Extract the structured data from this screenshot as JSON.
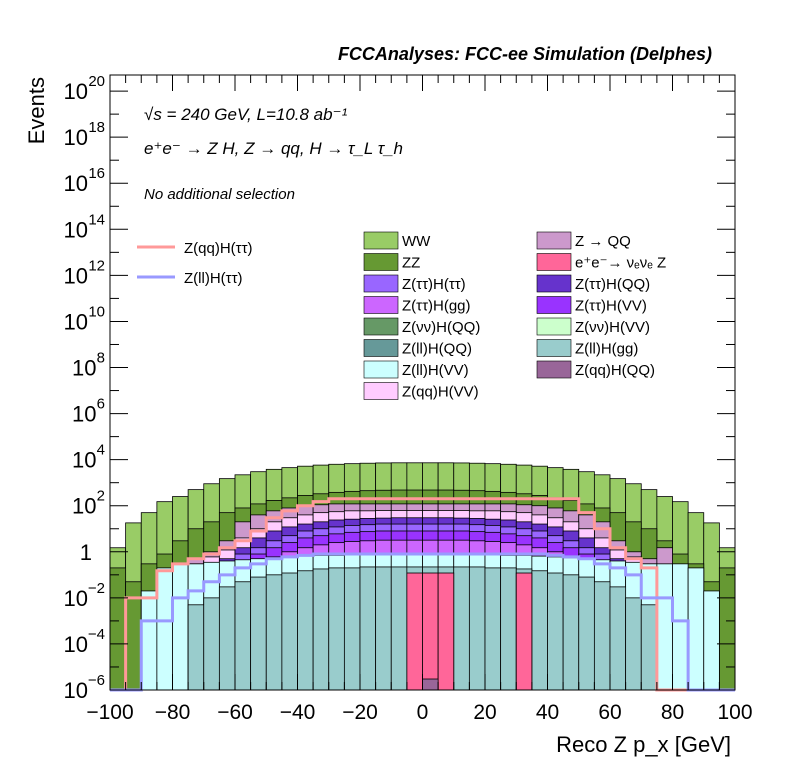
{
  "header": {
    "title": "FCCAnalyses: FCC-ee Simulation (Delphes)"
  },
  "annotations": {
    "energy_lumi": "√s = 240 GeV, L=10.8 ab⁻¹",
    "process": "e⁺e⁻ → Z H, Z → qq, H → τ_L τ_h",
    "selection": "No additional selection"
  },
  "chart_data": {
    "type": "histogram-stack",
    "title": "FCCAnalyses: FCC-ee Simulation (Delphes)",
    "xlabel": "Reco Z p_x [GeV]",
    "ylabel": "Events",
    "xlim": [
      -100,
      100
    ],
    "ylim": [
      1e-06,
      5e+20
    ],
    "yscale": "log",
    "bin_width": 5,
    "x_ticks": [
      "−100",
      "−80",
      "−60",
      "−40",
      "−20",
      "0",
      "20",
      "40",
      "60",
      "80",
      "100"
    ],
    "y_ticks": [
      {
        "value": 1e-06,
        "base": "10",
        "exp": "−6"
      },
      {
        "value": 0.0001,
        "base": "10",
        "exp": "−4"
      },
      {
        "value": 0.01,
        "base": "10",
        "exp": "−2"
      },
      {
        "value": 1,
        "base": "1",
        "exp": ""
      },
      {
        "value": 100.0,
        "base": "10",
        "exp": "2"
      },
      {
        "value": 10000.0,
        "base": "10",
        "exp": "4"
      },
      {
        "value": 1000000.0,
        "base": "10",
        "exp": "6"
      },
      {
        "value": 100000000.0,
        "base": "10",
        "exp": "8"
      },
      {
        "value": 10000000000.0,
        "base": "10",
        "exp": "10"
      },
      {
        "value": 1000000000000.0,
        "base": "10",
        "exp": "12"
      },
      {
        "value": 100000000000000.0,
        "base": "10",
        "exp": "14"
      },
      {
        "value": 1e+16,
        "base": "10",
        "exp": "16"
      },
      {
        "value": 1e+18,
        "base": "10",
        "exp": "18"
      },
      {
        "value": 1e+20,
        "base": "10",
        "exp": "20"
      }
    ],
    "legend": {
      "lines": [
        {
          "name": "Z(qq)H(ττ)",
          "color": "#ff9999"
        },
        {
          "name": "Z(ll)H(ττ)",
          "color": "#9999ff"
        }
      ],
      "fills_left": [
        {
          "name": "WW",
          "color": "#99cc66"
        },
        {
          "name": "ZZ",
          "color": "#669933"
        },
        {
          "name": "Z(ττ)H(ττ)",
          "color": "#9966ff"
        },
        {
          "name": "Z(ττ)H(gg)",
          "color": "#cc66ff"
        },
        {
          "name": "Z(νν)H(QQ)",
          "color": "#669966"
        },
        {
          "name": "Z(ll)H(QQ)",
          "color": "#669999"
        },
        {
          "name": "Z(ll)H(VV)",
          "color": "#ccffff"
        },
        {
          "name": "Z(qq)H(VV)",
          "color": "#ffccff"
        }
      ],
      "fills_right": [
        {
          "name": "Z → QQ",
          "color": "#cc99cc"
        },
        {
          "name": "e⁺e⁻→ νₑνₑ Z",
          "color": "#ff6699"
        },
        {
          "name": "Z(ττ)H(QQ)",
          "color": "#6633cc"
        },
        {
          "name": "Z(ττ)H(VV)",
          "color": "#9933ff"
        },
        {
          "name": "Z(νν)H(VV)",
          "color": "#ccffcc"
        },
        {
          "name": "Z(ll)H(gg)",
          "color": "#99cccc"
        },
        {
          "name": "Z(qq)H(QQ)",
          "color": "#996699"
        }
      ]
    },
    "bin_edges": [
      -100,
      -95,
      -90,
      -85,
      -80,
      -75,
      -70,
      -65,
      -60,
      -55,
      -50,
      -45,
      -40,
      -35,
      -30,
      -25,
      -20,
      -15,
      -10,
      -5,
      0,
      5,
      10,
      15,
      20,
      25,
      30,
      35,
      40,
      45,
      50,
      55,
      60,
      65,
      70,
      75,
      80,
      85,
      90,
      95,
      100
    ],
    "stack_totals": [
      {
        "name": "WW",
        "color": "#99cc66",
        "values": [
          1.5,
          18,
          50,
          150,
          250,
          500,
          900,
          1500,
          2200,
          3000,
          3800,
          4500,
          5200,
          5800,
          6300,
          6700,
          7000,
          7200,
          7300,
          7300,
          7300,
          7300,
          7200,
          7000,
          6700,
          6300,
          5800,
          5200,
          4500,
          3800,
          3000,
          2200,
          1500,
          900,
          500,
          250,
          150,
          50,
          18,
          1.5
        ]
      },
      {
        "name": "ZZ",
        "color": "#669933",
        "values": [
          0.2,
          0.05,
          0.3,
          0.8,
          3,
          10,
          20,
          50,
          80,
          120,
          170,
          220,
          280,
          330,
          380,
          420,
          450,
          470,
          480,
          480,
          480,
          480,
          470,
          450,
          420,
          380,
          330,
          280,
          220,
          170,
          120,
          80,
          50,
          20,
          10,
          3,
          0.8,
          0.3,
          0.05,
          0.2
        ]
      },
      {
        "name": "Z → QQ",
        "color": "#cc99cc",
        "values": [
          1e-06,
          1e-06,
          1e-06,
          1e-06,
          1e-06,
          0.5,
          1,
          3,
          20,
          40,
          60,
          80,
          100,
          110,
          120,
          120,
          120,
          120,
          120,
          120,
          120,
          120,
          120,
          120,
          120,
          120,
          110,
          100,
          80,
          60,
          40,
          20,
          3,
          1,
          0.5,
          1.5,
          1e-06,
          1e-06,
          1e-06,
          1e-06
        ]
      },
      {
        "name": "Z(qq)H(VV)",
        "color": "#ffccff",
        "values": [
          1e-06,
          1e-06,
          1e-06,
          1e-06,
          1e-06,
          0.3,
          0.6,
          1.2,
          4,
          10,
          20,
          30,
          40,
          50,
          55,
          60,
          60,
          62,
          62,
          62,
          62,
          62,
          62,
          60,
          60,
          55,
          50,
          40,
          30,
          20,
          10,
          4,
          1.2,
          0.6,
          0.3,
          1e-06,
          1e-06,
          1e-06,
          1e-06,
          1e-06
        ]
      },
      {
        "name": "Z(ττ)H(QQ)",
        "color": "#6633cc",
        "values": [
          1e-06,
          1e-06,
          1e-06,
          1e-06,
          1e-06,
          0.1,
          0.2,
          0.5,
          1.5,
          4,
          8,
          12,
          16,
          20,
          24,
          26,
          28,
          29,
          30,
          30,
          30,
          30,
          29,
          28,
          26,
          24,
          20,
          16,
          12,
          8,
          4,
          1.5,
          0.5,
          0.2,
          0.1,
          1e-06,
          1e-06,
          1e-06,
          1e-06,
          1e-06
        ]
      },
      {
        "name": "Z(ττ)H(ττ)",
        "color": "#9966ff",
        "values": [
          1e-06,
          1e-06,
          1e-06,
          1e-06,
          1e-06,
          0.05,
          0.1,
          0.3,
          0.8,
          1.5,
          3,
          5,
          8,
          10,
          12,
          14,
          15,
          16,
          16,
          16,
          16,
          16,
          16,
          15,
          14,
          12,
          10,
          8,
          5,
          3,
          1.5,
          0.8,
          0.3,
          0.1,
          0.05,
          1e-06,
          1e-06,
          1e-06,
          1e-06,
          1e-06
        ]
      },
      {
        "name": "Z(ττ)H(VV)",
        "color": "#9933ff",
        "values": [
          1e-06,
          1e-06,
          1e-06,
          1e-06,
          1e-06,
          0.03,
          0.05,
          0.15,
          0.4,
          0.8,
          1.5,
          2.5,
          4,
          5,
          6,
          7,
          7.5,
          8,
          8,
          8,
          8,
          8,
          8,
          7.5,
          7,
          6,
          5,
          4,
          2.5,
          1.5,
          0.8,
          0.4,
          0.15,
          0.05,
          0.03,
          1e-06,
          1e-06,
          1e-06,
          1e-06,
          1e-06
        ]
      },
      {
        "name": "Z(ττ)H(gg)",
        "color": "#cc66ff",
        "values": [
          1e-06,
          1e-06,
          1e-06,
          1e-06,
          1e-06,
          0.01,
          0.02,
          0.05,
          0.15,
          0.3,
          0.6,
          1,
          1.5,
          2,
          2.5,
          2.8,
          3,
          3.2,
          3.2,
          3.2,
          3.2,
          3.2,
          3.2,
          3,
          2.8,
          2.5,
          2,
          1.5,
          1,
          0.6,
          0.3,
          0.15,
          0.05,
          0.02,
          0.01,
          1e-06,
          1e-06,
          1e-06,
          1e-06,
          1e-06
        ]
      },
      {
        "name": "Z(ll)H(VV)",
        "color": "#ccffff",
        "values": [
          1e-06,
          1e-06,
          0.02,
          0.2,
          0.3,
          0.3,
          0.35,
          0.4,
          0.45,
          0.5,
          0.55,
          0.6,
          0.65,
          0.7,
          0.7,
          0.75,
          0.75,
          0.8,
          0.8,
          0.8,
          0.8,
          0.8,
          0.8,
          0.75,
          0.75,
          0.7,
          0.7,
          0.65,
          0.6,
          0.55,
          0.5,
          0.45,
          0.4,
          0.35,
          0.3,
          0.3,
          0.3,
          0.2,
          0.02,
          1e-06
        ]
      },
      {
        "name": "Z(ll)H(gg)",
        "color": "#99cccc",
        "values": [
          1e-06,
          1e-06,
          1e-06,
          1e-06,
          1e-06,
          0.005,
          0.01,
          0.03,
          0.05,
          0.08,
          0.1,
          0.12,
          0.15,
          0.18,
          0.2,
          0.2,
          0.22,
          0.22,
          0.22,
          0.22,
          0.22,
          0.22,
          0.22,
          0.22,
          0.2,
          0.2,
          0.18,
          0.15,
          0.12,
          0.1,
          0.08,
          0.05,
          0.03,
          0.01,
          0.005,
          1e-06,
          1e-06,
          1e-06,
          1e-06,
          1e-06
        ]
      },
      {
        "name": "e⁺e⁻→ νₑνₑ Z",
        "color": "#ff6699",
        "values": [
          1e-06,
          1e-06,
          1e-06,
          1e-06,
          1e-06,
          1e-06,
          1e-06,
          1e-06,
          1e-06,
          1e-06,
          1e-06,
          1e-06,
          1e-06,
          1e-06,
          1e-06,
          1e-06,
          1e-06,
          1e-06,
          1e-06,
          0.12,
          0.12,
          0.12,
          1e-06,
          1e-06,
          1e-06,
          1e-06,
          0.12,
          1e-06,
          1e-06,
          1e-06,
          1e-06,
          1e-06,
          1e-06,
          1e-06,
          1e-06,
          1e-06,
          1e-06,
          1e-06,
          1e-06,
          1e-06
        ]
      },
      {
        "name": "Z(qq)H(QQ)",
        "color": "#996699",
        "values": [
          1e-06,
          1e-06,
          1e-06,
          1e-06,
          1e-06,
          1e-06,
          1e-06,
          1e-06,
          1e-06,
          1e-06,
          1e-06,
          1e-06,
          1e-06,
          1e-06,
          1e-06,
          1e-06,
          1e-06,
          1e-06,
          1e-06,
          1e-06,
          3e-06,
          1e-06,
          1e-06,
          1e-06,
          1e-06,
          1e-06,
          1e-06,
          1e-06,
          1e-06,
          1e-06,
          1e-06,
          1e-06,
          1e-06,
          1e-06,
          1e-06,
          1e-06,
          1e-06,
          1e-06,
          1e-06,
          1e-06
        ]
      }
    ],
    "line_series": [
      {
        "name": "Z(qq)H(ττ)",
        "color": "#ff9999",
        "values": [
          1e-06,
          0.01,
          0.01,
          0.15,
          0.3,
          0.5,
          0.8,
          1.5,
          3,
          8,
          30,
          60,
          100,
          150,
          200,
          200,
          200,
          200,
          200,
          200,
          200,
          200,
          200,
          200,
          200,
          200,
          200,
          200,
          200,
          200,
          50,
          10,
          1.5,
          0.5,
          0.2,
          1e-06,
          1e-06,
          1e-06,
          1e-06,
          1e-06
        ]
      },
      {
        "name": "Z(ll)H(ττ)",
        "color": "#9999ff",
        "values": [
          1e-06,
          1e-06,
          0.001,
          0.001,
          0.01,
          0.02,
          0.05,
          0.1,
          0.2,
          0.3,
          0.5,
          0.6,
          0.7,
          0.8,
          0.8,
          0.8,
          0.8,
          0.8,
          0.8,
          0.8,
          0.8,
          0.8,
          0.8,
          0.8,
          0.8,
          0.8,
          0.8,
          0.8,
          0.7,
          0.6,
          0.5,
          0.3,
          0.2,
          0.1,
          0.01,
          0.01,
          0.001,
          1e-06,
          1e-06,
          1e-06
        ]
      }
    ]
  }
}
